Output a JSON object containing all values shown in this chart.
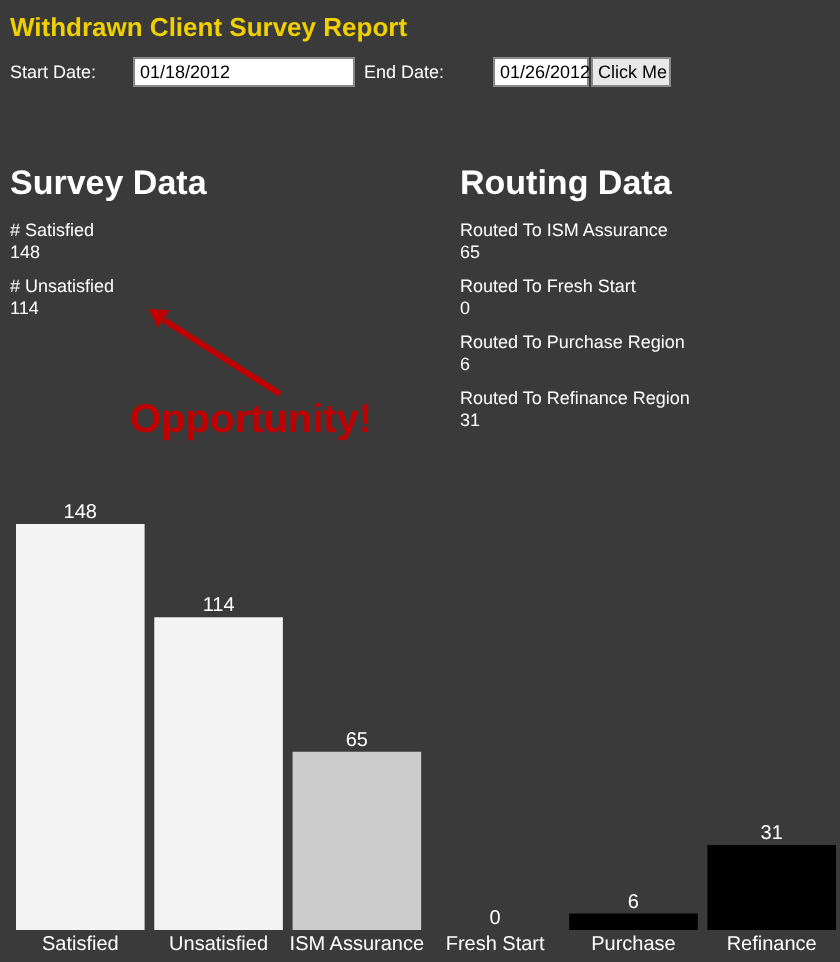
{
  "chart_data": {
    "type": "bar",
    "title": "Withdrawn Client Survey Report",
    "categories": [
      "Satisfied",
      "Unsatisfied",
      "ISM Assurance",
      "Fresh Start",
      "Purchase",
      "Refinance"
    ],
    "values": [
      148,
      114,
      65,
      0,
      6,
      31
    ],
    "colors": [
      "#f4f4f4",
      "#f4f4f4",
      "#cccccc",
      "#000000",
      "#000000",
      "#000000"
    ],
    "data_labels": true,
    "annotations": [
      "Start Date:",
      "01/18/2012",
      "End Date:",
      "01/26/2012",
      "Click Me",
      "Survey Data",
      "# Satisfied",
      "148",
      "# Unsatisfied",
      "114",
      "Routing Data",
      "Routed To ISM Assurance",
      "65",
      "Routed To Fresh Start",
      "0",
      "Routed To Purchase Region",
      "6",
      "Routed To Refinance Region",
      "31",
      "Opportunity!"
    ]
  }
}
